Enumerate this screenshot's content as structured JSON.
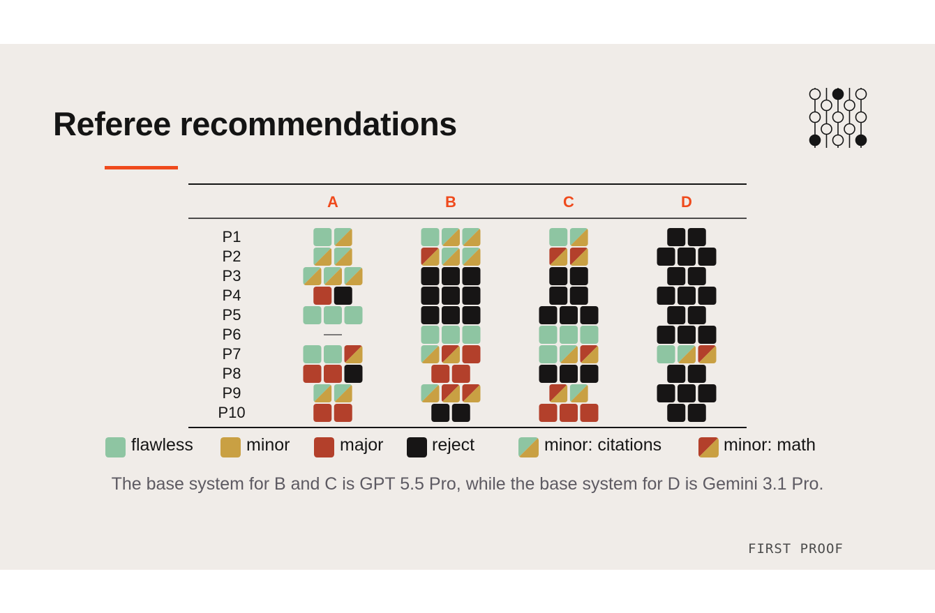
{
  "title": "Referee recommendations",
  "caption": "The base system for B and C is GPT 5.5 Pro, while the base system for D is Gemini 3.1 Pro.",
  "footer": "FIRST PROOF",
  "logo_icon": "abacus-circles-icon",
  "colors": {
    "accent": "#ef4a1c",
    "background": "#f0ece8",
    "flawless": "#8ec5a2",
    "minor": "#c9a043",
    "major": "#b3402b",
    "reject": "#171515"
  },
  "legend": [
    {
      "key": "flawless",
      "label": "flawless"
    },
    {
      "key": "minor",
      "label": "minor"
    },
    {
      "key": "major",
      "label": "major"
    },
    {
      "key": "reject",
      "label": "reject"
    },
    {
      "key": "minor_citations",
      "label": "minor: citations"
    },
    {
      "key": "minor_math",
      "label": "minor: math"
    }
  ],
  "chart_data": {
    "type": "table",
    "columns": [
      "A",
      "B",
      "C",
      "D"
    ],
    "rows": [
      "P1",
      "P2",
      "P3",
      "P4",
      "P5",
      "P6",
      "P7",
      "P8",
      "P9",
      "P10"
    ],
    "cells": {
      "A": [
        [
          "flawless",
          "minor_citations"
        ],
        [
          "minor_citations",
          "minor_citations"
        ],
        [
          "minor_citations",
          "minor_citations",
          "minor_citations"
        ],
        [
          "major",
          "reject"
        ],
        [
          "flawless",
          "flawless",
          "flawless"
        ],
        [],
        [
          "flawless",
          "flawless",
          "minor_math"
        ],
        [
          "major",
          "major",
          "reject"
        ],
        [
          "minor_citations",
          "minor_citations"
        ],
        [
          "major",
          "major"
        ]
      ],
      "B": [
        [
          "flawless",
          "minor_citations",
          "minor_citations"
        ],
        [
          "minor_math",
          "minor_citations",
          "minor_citations"
        ],
        [
          "reject",
          "reject",
          "reject"
        ],
        [
          "reject",
          "reject",
          "reject"
        ],
        [
          "reject",
          "reject",
          "reject"
        ],
        [
          "flawless",
          "flawless",
          "flawless"
        ],
        [
          "minor_citations",
          "minor_math",
          "major"
        ],
        [
          "major",
          "major"
        ],
        [
          "minor_citations",
          "minor_math",
          "minor_math"
        ],
        [
          "reject",
          "reject"
        ]
      ],
      "C": [
        [
          "flawless",
          "minor_citations"
        ],
        [
          "minor_math",
          "minor_math"
        ],
        [
          "reject",
          "reject"
        ],
        [
          "reject",
          "reject"
        ],
        [
          "reject",
          "reject",
          "reject"
        ],
        [
          "flawless",
          "flawless",
          "flawless"
        ],
        [
          "flawless",
          "minor_citations",
          "minor_math"
        ],
        [
          "reject",
          "reject",
          "reject"
        ],
        [
          "minor_math",
          "minor_citations"
        ],
        [
          "major",
          "major",
          "major"
        ]
      ],
      "D": [
        [
          "reject",
          "reject"
        ],
        [
          "reject",
          "reject",
          "reject"
        ],
        [
          "reject",
          "reject"
        ],
        [
          "reject",
          "reject",
          "reject"
        ],
        [
          "reject",
          "reject"
        ],
        [
          "reject",
          "reject",
          "reject"
        ],
        [
          "flawless",
          "minor_citations",
          "minor_math"
        ],
        [
          "reject",
          "reject"
        ],
        [
          "reject",
          "reject",
          "reject"
        ],
        [
          "reject",
          "reject"
        ]
      ]
    }
  }
}
